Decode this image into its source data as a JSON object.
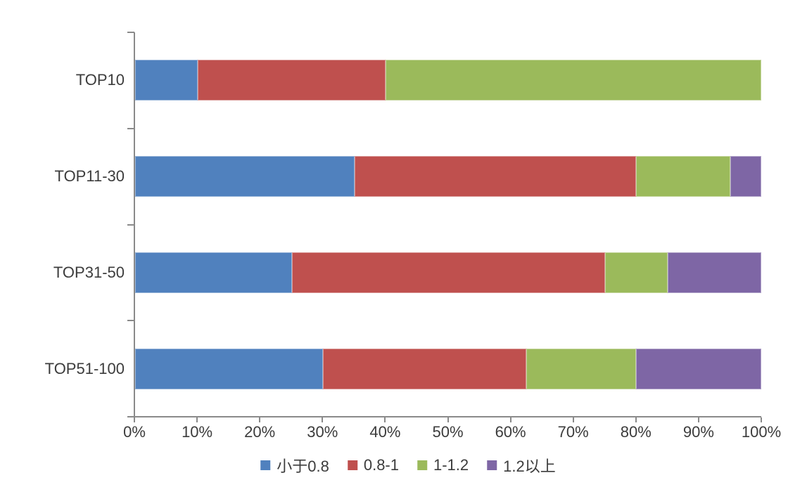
{
  "chart_data": {
    "type": "bar",
    "orientation": "horizontal",
    "stacked": true,
    "title": "",
    "categories": [
      "TOP10",
      "TOP11-30",
      "TOP31-50",
      "TOP51-100"
    ],
    "series": [
      {
        "name": "小于0.8",
        "color": "#5081BE",
        "values": [
          10,
          35,
          25,
          30
        ]
      },
      {
        "name": "0.8-1",
        "color": "#BF504E",
        "values": [
          30,
          45,
          50,
          32.5
        ]
      },
      {
        "name": "1-1.2",
        "color": "#9BBA5B",
        "values": [
          60,
          15,
          10,
          17.5
        ]
      },
      {
        "name": "1.2以上",
        "color": "#7E66A5",
        "values": [
          0,
          5,
          15,
          20
        ]
      }
    ],
    "x_axis": {
      "min": 0,
      "max": 100,
      "step": 10,
      "unit": "%",
      "tick_labels": [
        "0%",
        "10%",
        "20%",
        "30%",
        "40%",
        "50%",
        "60%",
        "70%",
        "80%",
        "90%",
        "100%"
      ]
    },
    "y_axis": {
      "tick_labels": [
        "TOP10",
        "TOP11-30",
        "TOP31-50",
        "TOP51-100"
      ]
    },
    "legend": {
      "position": "bottom",
      "entries": [
        "小于0.8",
        "0.8-1",
        "1-1.2",
        "1.2以上"
      ]
    },
    "grid": false
  },
  "colors": {
    "axis": "#8A8A8A",
    "text": "#3C3C3C",
    "background": "#FFFFFF"
  }
}
